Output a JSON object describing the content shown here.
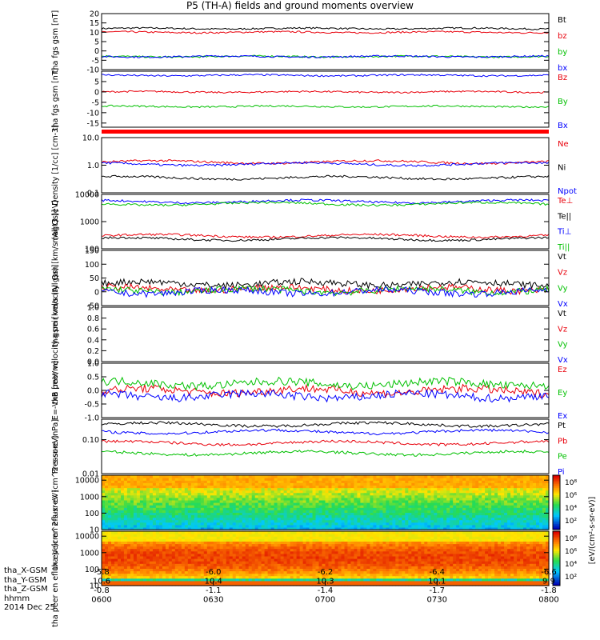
{
  "title": "P5 (TH-A) fields and ground moments overview",
  "time": {
    "ticks": [
      "0600",
      "0630",
      "0700",
      "0730",
      "0800"
    ],
    "date": "2014 Dec 25",
    "rows": [
      {
        "label": "tha_X-GSM",
        "values": [
          "-5.8",
          "-6.0",
          "-6.2",
          "-6.4",
          "-6.6"
        ]
      },
      {
        "label": "tha_Y-GSM",
        "values": [
          "10.6",
          "10.4",
          "10.3",
          "10.1",
          "9.9"
        ]
      },
      {
        "label": "tha_Z-GSM",
        "values": [
          "-0.8",
          "-1.1",
          "-1.4",
          "-1.7",
          "-1.8"
        ]
      },
      {
        "label": "hhmm",
        "values": [
          "0600",
          "0630",
          "0700",
          "0730",
          "0800"
        ]
      }
    ]
  },
  "colorbar_label": "[eV/(cm²-s-sr-eV)]",
  "chart_data": [
    {
      "type": "line",
      "ylabel": "tha fgs gsm [nT]",
      "ylim": [
        -10,
        20
      ],
      "yticks": [
        "20",
        "15",
        "10",
        "5",
        "0",
        "-5",
        "-10"
      ],
      "series": [
        {
          "name": "Bt",
          "color": "#000000",
          "level": 12
        },
        {
          "name": "bz",
          "color": "#e8000b",
          "level": 10
        },
        {
          "name": "by",
          "color": "#00c000",
          "level": -3
        },
        {
          "name": "bx",
          "color": "#0000ff",
          "level": -3
        }
      ]
    },
    {
      "type": "line",
      "ylabel": "tha fgs gsm [nT]",
      "ylim": [
        -17,
        10
      ],
      "yticks": [
        "5",
        "0",
        "-5",
        "-10",
        "-15"
      ],
      "series": [
        {
          "name": "Bz",
          "color": "#e8000b",
          "level": 0
        },
        {
          "name": "By",
          "color": "#00c000",
          "level": -7
        },
        {
          "name": "Bx",
          "color": "#0000ff",
          "level": 8
        }
      ]
    },
    {
      "type": "line",
      "ylabel": "Density [1/cc] [cm-3]",
      "scale": "log",
      "ylim": [
        0.1,
        10
      ],
      "yticks": [
        "10.0",
        "1.0",
        "0.1"
      ],
      "series": [
        {
          "name": "Ne",
          "color": "#e8000b",
          "level": 1.3
        },
        {
          "name": "Ni",
          "color": "#000000",
          "level": 0.35
        },
        {
          "name": "Npot",
          "color": "#0000ff",
          "level": 1.1
        }
      ]
    },
    {
      "type": "line",
      "ylabel": "magt3 [eV]",
      "scale": "log",
      "ylim": [
        100,
        10000
      ],
      "yticks": [
        "10000",
        "1000",
        "100"
      ],
      "series": [
        {
          "name": "Te⊥",
          "color": "#e8000b",
          "level": 300
        },
        {
          "name": "Te||",
          "color": "#000000",
          "level": 230
        },
        {
          "name": "Ti⊥",
          "color": "#0000ff",
          "level": 5500
        },
        {
          "name": "Ti||",
          "color": "#00c000",
          "level": 4500
        }
      ]
    },
    {
      "type": "line",
      "ylabel": "tha peir velocity gsm [km/s (All Qs)]",
      "ylim": [
        -50,
        150
      ],
      "yticks": [
        "150",
        "100",
        "50",
        "0",
        "-50"
      ],
      "series": [
        {
          "name": "Vt",
          "color": "#000000",
          "level": 30
        },
        {
          "name": "Vz",
          "color": "#e8000b",
          "level": 10
        },
        {
          "name": "Vy",
          "color": "#00c000",
          "level": 5
        },
        {
          "name": "Vx",
          "color": "#0000ff",
          "level": 0
        }
      ]
    },
    {
      "type": "line",
      "ylabel": "tha peer velocity gsm [km/s (All Qs)]",
      "ylim": [
        0,
        1
      ],
      "yticks": [
        "1.0",
        "0.8",
        "0.6",
        "0.4",
        "0.2",
        "0.0"
      ],
      "series": [
        {
          "name": "Vt",
          "color": "#000000"
        },
        {
          "name": "Vz",
          "color": "#e8000b"
        },
        {
          "name": "Vy",
          "color": "#00c000"
        },
        {
          "name": "Vx",
          "color": "#0000ff"
        }
      ]
    },
    {
      "type": "line",
      "ylabel": "E=-VxB [mV/m]",
      "ylim": [
        -1,
        1
      ],
      "yticks": [
        "1.0",
        "0.5",
        "0.0",
        "-0.5",
        "-1.0"
      ],
      "series": [
        {
          "name": "Ez",
          "color": "#e8000b",
          "level": -0.02
        },
        {
          "name": "Ey",
          "color": "#00c000",
          "level": 0.25
        },
        {
          "name": "Ex",
          "color": "#0000ff",
          "level": -0.2
        }
      ]
    },
    {
      "type": "line",
      "ylabel": "Pressure [nPa]",
      "scale": "log",
      "ylim": [
        0.01,
        0.4
      ],
      "yticks": [
        "0.10",
        "0.01"
      ],
      "series": [
        {
          "name": "Pt",
          "color": "#000000",
          "level": 0.28
        },
        {
          "name": "Pb",
          "color": "#e8000b",
          "level": 0.08
        },
        {
          "name": "Pe",
          "color": "#00c000",
          "level": 0.04
        },
        {
          "name": "Pi",
          "color": "#0000ff",
          "level": 0.17
        }
      ]
    },
    {
      "type": "heatmap",
      "ylabel": "tha peir en eflux eV (cm^2-s-sr-eV)",
      "scale": "log",
      "ylim": [
        10,
        20000
      ],
      "yticks": [
        "10000",
        "1000",
        "100",
        "10"
      ],
      "zticks": [
        "10⁸",
        "10⁶",
        "10⁴",
        "10²"
      ]
    },
    {
      "type": "heatmap",
      "ylabel": "tha peer en eflux eV (cm^2-s-sr-eV)",
      "scale": "log",
      "ylim": [
        10,
        20000
      ],
      "yticks": [
        "10000",
        "1000",
        "100",
        "10"
      ],
      "zticks": [
        "10⁸",
        "10⁶",
        "10⁴",
        "10²"
      ]
    }
  ]
}
